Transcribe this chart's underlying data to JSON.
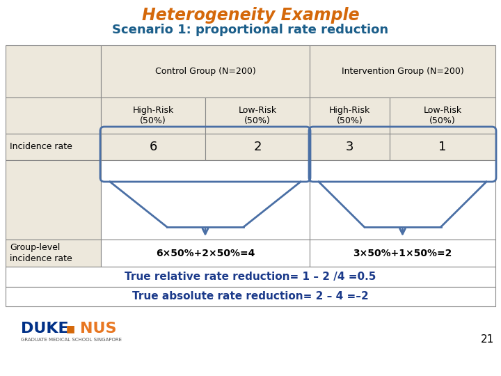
{
  "title1": "Heterogeneity Example",
  "title2": "Scenario 1: proportional rate reduction",
  "title1_color": "#D4680A",
  "title2_color": "#1B5E8A",
  "bg_color": "#FFFFFF",
  "table_bg": "#EDE8DC",
  "grid_color": "#888888",
  "arrow_color": "#4A6FA5",
  "col_headers_sub": [
    "High-Risk\n(50%)",
    "Low-Risk\n(50%)",
    "High-Risk\n(50%)",
    "Low-Risk\n(50%)"
  ],
  "incidence_values": [
    "6",
    "2",
    "3",
    "1"
  ],
  "group_level_control": "6×50%+2×50%=4",
  "group_level_intervention": "3×50%+1×50%=2",
  "footer1": "True relative rate reduction= 1 – 2 /4 =0.5",
  "footer2": "True absolute rate reduction= 2 – 4 =–2",
  "footer_color": "#1B3A8A",
  "page_num": "21"
}
